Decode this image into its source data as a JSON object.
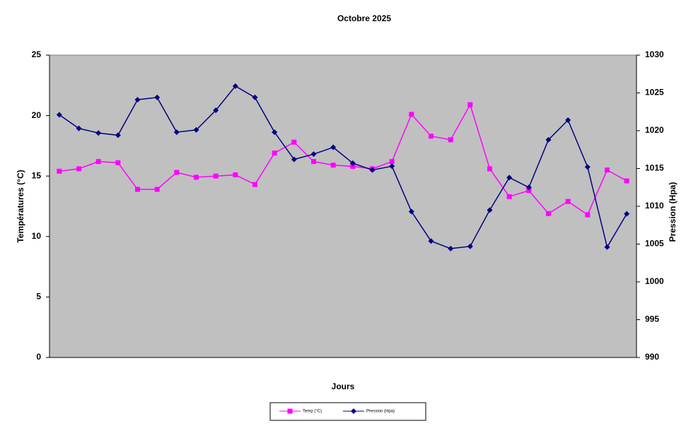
{
  "chart_data": {
    "type": "line",
    "title": "Octobre 2025",
    "x_label": "Jours",
    "y_label": "Températures (°C)",
    "y2_label": "Pression (Hpa)",
    "ylim": [
      0,
      25
    ],
    "yticks": [
      0,
      5,
      10,
      15,
      20,
      25
    ],
    "y2lim": [
      990,
      1030
    ],
    "y2ticks": [
      990,
      995,
      1000,
      1005,
      1010,
      1015,
      1020,
      1025,
      1030
    ],
    "series": [
      {
        "name": "Temp (°C)",
        "color": "#ff00ff",
        "marker": "square",
        "values": [
          15.4,
          15.6,
          16.2,
          16.1,
          13.9,
          13.9,
          15.3,
          14.9,
          15.0,
          15.1,
          14.3,
          16.9,
          17.8,
          16.2,
          15.9,
          15.8,
          15.6,
          16.2,
          20.1,
          18.3,
          18.0,
          20.9,
          15.6,
          13.3,
          13.8,
          11.9,
          12.9,
          11.8,
          15.5,
          14.6
        ]
      },
      {
        "name": "Pression (Hpa)",
        "color": "#000080",
        "marker": "diamond",
        "axis": "y2",
        "values": [
          1022.1,
          1020.3,
          1019.7,
          1019.4,
          1024.1,
          1024.4,
          1019.8,
          1020.1,
          1022.7,
          1025.9,
          1024.4,
          1019.8,
          1016.2,
          1016.9,
          1017.8,
          1015.7,
          1014.8,
          1015.3,
          1009.3,
          1005.4,
          1004.4,
          1004.7,
          1009.5,
          1013.8,
          1012.5,
          1018.8,
          1021.4,
          1015.2,
          1004.6,
          1009.0
        ]
      }
    ]
  }
}
